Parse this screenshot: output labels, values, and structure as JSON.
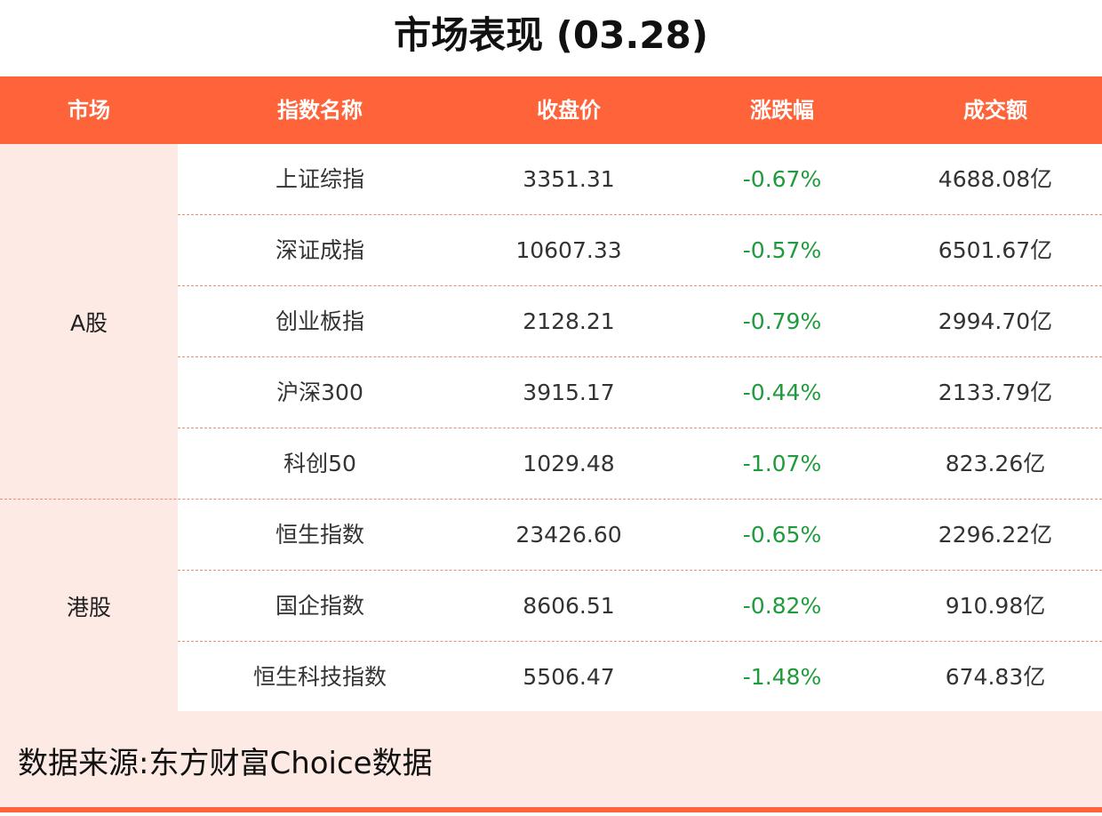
{
  "title": "市场表现 (03.28)",
  "columns": [
    "市场",
    "指数名称",
    "收盘价",
    "涨跌幅",
    "成交额"
  ],
  "groups": [
    {
      "market": "A股",
      "rows": [
        {
          "name": "上证综指",
          "close": "3351.31",
          "change": "-0.67%",
          "volume": "4688.08亿"
        },
        {
          "name": "深证成指",
          "close": "10607.33",
          "change": "-0.57%",
          "volume": "6501.67亿"
        },
        {
          "name": "创业板指",
          "close": "2128.21",
          "change": "-0.79%",
          "volume": "2994.70亿"
        },
        {
          "name": "沪深300",
          "close": "3915.17",
          "change": "-0.44%",
          "volume": "2133.79亿"
        },
        {
          "name": "科创50",
          "close": "1029.48",
          "change": "-1.07%",
          "volume": "823.26亿"
        }
      ]
    },
    {
      "market": "港股",
      "rows": [
        {
          "name": "恒生指数",
          "close": "23426.60",
          "change": "-0.65%",
          "volume": "2296.22亿"
        },
        {
          "name": "国企指数",
          "close": "8606.51",
          "change": "-0.82%",
          "volume": "910.98亿"
        },
        {
          "name": "恒生科技指数",
          "close": "5506.47",
          "change": "-1.48%",
          "volume": "674.83亿"
        }
      ]
    }
  ],
  "source": "数据来源:东方财富Choice数据",
  "colors": {
    "header": "#fe633a",
    "market_bg": "#fdeae4",
    "negative": "#1f9a3c"
  }
}
